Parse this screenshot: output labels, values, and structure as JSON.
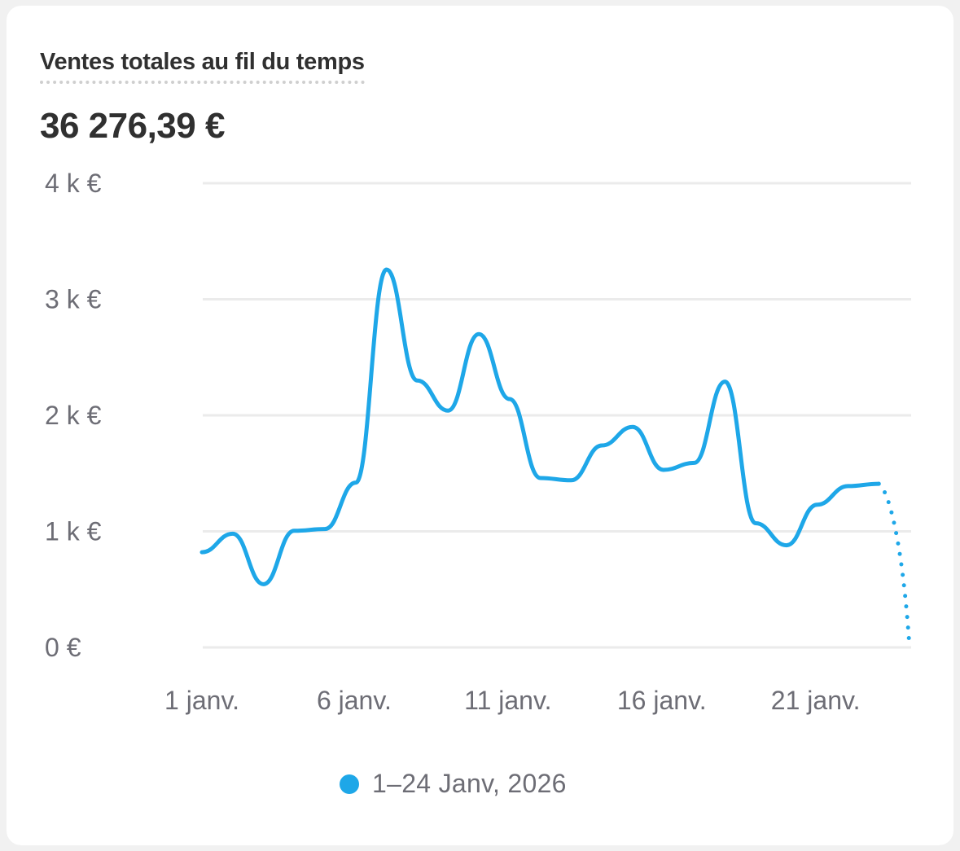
{
  "card": {
    "title": "Ventes totales au fil du temps",
    "total": "36 276,39 €"
  },
  "colors": {
    "series": "#1ea7e8",
    "grid": "#ebebeb",
    "axis_text": "#6d6d75",
    "title_text": "#303030",
    "page_bg": "#f1f1f1",
    "card_bg": "#ffffff"
  },
  "legend": {
    "label": "1–24 Janv, 2026",
    "color": "#1ea7e8"
  },
  "chart_data": {
    "type": "line",
    "title": "Ventes totales au fil du temps",
    "subtitle": "36 276,39 €",
    "xlabel": "",
    "ylabel": "",
    "y_tick_labels": [
      "0 €",
      "1 k €",
      "2 k €",
      "3 k €",
      "4 k €"
    ],
    "y_ticks": [
      0,
      1000,
      2000,
      3000,
      4000
    ],
    "ylim": [
      0,
      4000
    ],
    "x_tick_labels": [
      "1 janv.",
      "6 janv.",
      "11 janv.",
      "16 janv.",
      "21 janv."
    ],
    "x_tick_days": [
      1,
      6,
      11,
      16,
      21
    ],
    "grid": true,
    "legend_position": "bottom",
    "x": [
      1,
      2,
      3,
      4,
      5,
      6,
      7,
      8,
      9,
      10,
      11,
      12,
      13,
      14,
      15,
      16,
      17,
      18,
      19,
      20,
      21,
      22,
      23,
      24
    ],
    "series": [
      {
        "name": "1–24 Janv, 2026",
        "color": "#1ea7e8",
        "values": [
          820,
          980,
          545,
          1005,
          1020,
          1420,
          3256,
          2300,
          2040,
          2700,
          2140,
          1460,
          1440,
          1740,
          1900,
          1530,
          1590,
          2290,
          1070,
          880,
          1230,
          1390,
          1410,
          0
        ],
        "dashed_from_index": 22
      }
    ]
  }
}
